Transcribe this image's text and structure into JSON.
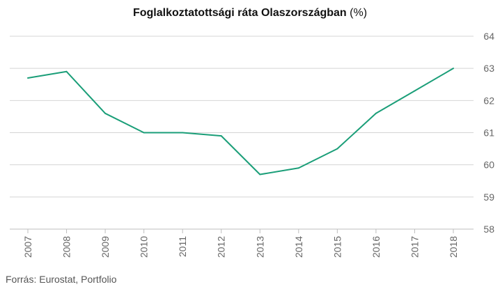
{
  "chart_data": {
    "type": "line",
    "title": "Foglalkoztatottsági ráta Olaszországban",
    "title_unit": "(%)",
    "xlabel": "",
    "ylabel": "",
    "categories": [
      "2007",
      "2008",
      "2009",
      "2010",
      "2011",
      "2012",
      "2013",
      "2014",
      "2015",
      "2016",
      "2017",
      "2018"
    ],
    "series": [
      {
        "values": [
          62.7,
          62.9,
          61.6,
          61.0,
          61.0,
          60.9,
          59.7,
          59.9,
          60.5,
          61.6,
          62.3,
          63.0
        ]
      }
    ],
    "ylim": [
      58,
      64
    ],
    "yticks": [
      "58",
      "59",
      "60",
      "61",
      "62",
      "63",
      "64"
    ],
    "y_axis_side": "right",
    "grid": true,
    "line_color": "#1a9e78",
    "grid_color": "#d4d4d4"
  },
  "source": "Forrás: Eurostat, Portfolio"
}
